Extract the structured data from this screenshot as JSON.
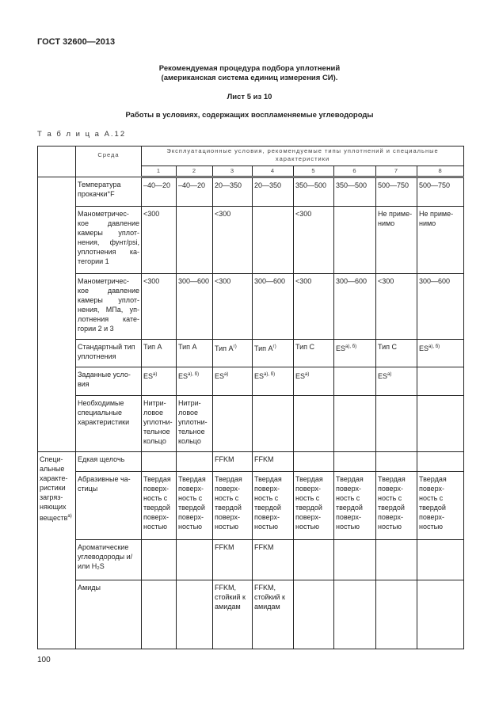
{
  "header": "ГОСТ 32600—2013",
  "title_line1": "Рекомендуемая процедура подбора уплотнений",
  "title_line2": "(американская система единиц измерения СИ).",
  "sheet": "Лист 5 из 10",
  "subtitle": "Работы в условиях, содержащих воспламеняемые углеводороды",
  "table_label": "Т а б л и ц а  А.12",
  "table": {
    "col_header_medium": "Среда",
    "col_header_group": "Эксплуатационные условия, рекомендуемые типы уплотнений и специальные характеристики",
    "col_numbers": [
      "1",
      "2",
      "3",
      "4",
      "5",
      "6",
      "7",
      "8"
    ],
    "group_label": "Специ-альные характе-ристики загряз-няющих веществ",
    "group_label_sup": "а)",
    "rows": [
      {
        "label": "Температура прокачки°F",
        "cells": [
          [
            "–40—20"
          ],
          [
            "–40—20"
          ],
          [
            "20—350"
          ],
          [
            "20—350"
          ],
          [
            "350—500"
          ],
          [
            "350—500"
          ],
          [
            "500—750"
          ],
          [
            "500—750"
          ]
        ]
      },
      {
        "label": "Манометричес-кое давление камеры уплот-нения, фунт/psi, уплотнения ка-тегории 1",
        "cells": [
          [
            "<300"
          ],
          [
            ""
          ],
          [
            "<300"
          ],
          [
            ""
          ],
          [
            "<300"
          ],
          [
            ""
          ],
          [
            "Не приме-нимо"
          ],
          [
            "Не приме-нимо"
          ]
        ]
      },
      {
        "label": "Манометричес-кое давление камеры уплот-нения, МПа, уп-лотнения кате-гории 2 и 3",
        "cells": [
          [
            "<300"
          ],
          [
            "300—600"
          ],
          [
            "<300"
          ],
          [
            "300—600"
          ],
          [
            "<300"
          ],
          [
            "300—600"
          ],
          [
            "<300"
          ],
          [
            "300—600"
          ]
        ]
      },
      {
        "label": "Стандартный тип уплотнения",
        "cells": [
          [
            "Тип А"
          ],
          [
            "Тип А"
          ],
          [
            "Тип А",
            "г)"
          ],
          [
            "Тип А",
            "г)"
          ],
          [
            "Тип С"
          ],
          [
            "ES",
            "а), б)"
          ],
          [
            "Тип С"
          ],
          [
            "ES",
            "а), б)"
          ]
        ]
      },
      {
        "label": "Заданные усло-вия",
        "cells": [
          [
            "ES",
            "а)"
          ],
          [
            "ES",
            "а), б)"
          ],
          [
            "ES",
            "а)"
          ],
          [
            "ES",
            "а), б)"
          ],
          [
            "ES",
            "а)"
          ],
          [
            ""
          ],
          [
            "ES",
            "а)"
          ],
          [
            ""
          ]
        ]
      },
      {
        "label": "Необходимые специальные характеристики",
        "cells": [
          [
            "Нитри-ловое уплотни-тельное кольцо"
          ],
          [
            "Нитри-ловое уплотни-тельное кольцо"
          ],
          [
            ""
          ],
          [
            ""
          ],
          [
            ""
          ],
          [
            ""
          ],
          [
            ""
          ],
          [
            ""
          ]
        ]
      },
      {
        "label": "Едкая щелочь",
        "cells": [
          [
            ""
          ],
          [
            ""
          ],
          [
            "FFKM"
          ],
          [
            "FFKM"
          ],
          [
            ""
          ],
          [
            ""
          ],
          [
            ""
          ],
          [
            ""
          ]
        ]
      },
      {
        "label": "Абразивные ча-стицы",
        "cells": [
          [
            "Твердая поверх-ность с твердой поверх-ностью"
          ],
          [
            "Твердая поверх-ность с твердой поверх-ностью"
          ],
          [
            "Твердая поверх-ность с твердой поверх-ностью"
          ],
          [
            "Твердая поверх-ность с твердой поверх-ностью"
          ],
          [
            "Твердая поверх-ность с твердой поверх-ностью"
          ],
          [
            "Твердая поверх-ность с твердой поверх-ностью"
          ],
          [
            "Твердая поверх-ность с твердой поверх-ностью"
          ],
          [
            "Твердая поверх-ность с твердой поверх-ностью"
          ]
        ]
      },
      {
        "label": "Ароматические углеводороды и/или H₂S",
        "cells": [
          [
            ""
          ],
          [
            ""
          ],
          [
            "FFKM"
          ],
          [
            "FFKM"
          ],
          [
            ""
          ],
          [
            ""
          ],
          [
            ""
          ],
          [
            ""
          ]
        ]
      },
      {
        "label": "Амиды",
        "cells": [
          [
            ""
          ],
          [
            ""
          ],
          [
            "FFKM, стойкий к амидам"
          ],
          [
            "FFKM, стойкий к амидам"
          ],
          [
            ""
          ],
          [
            ""
          ],
          [
            ""
          ],
          [
            ""
          ]
        ]
      }
    ]
  },
  "page_number": "100"
}
